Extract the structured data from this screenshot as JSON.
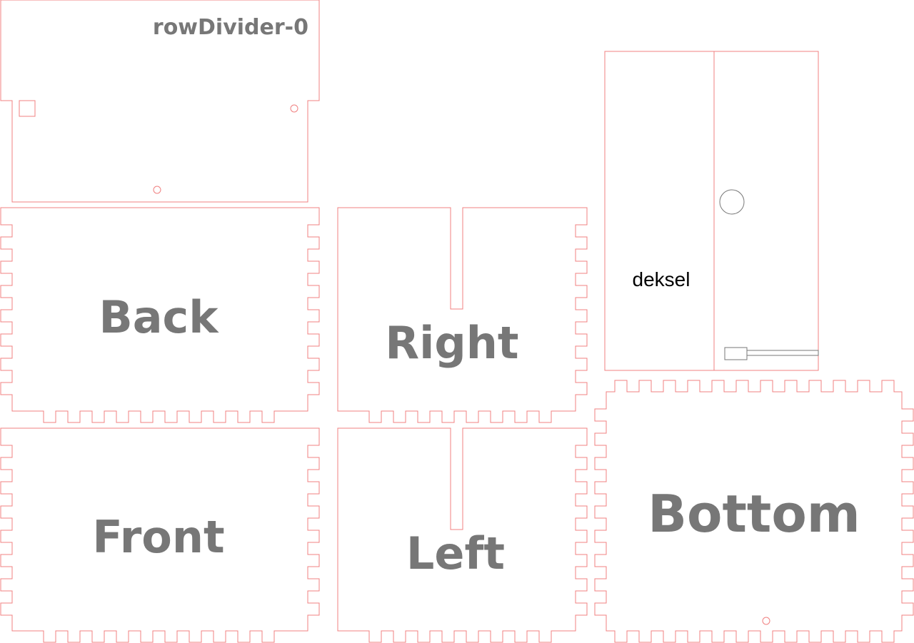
{
  "labels": {
    "row_divider": "rowDivider-0",
    "back": "Back",
    "right": "Right",
    "lid": "deksel",
    "front": "Front",
    "left": "Left",
    "bottom": "Bottom"
  },
  "colors": {
    "cut_line": "#f08080",
    "label_text": "#777777",
    "lid_text": "#000000",
    "engrave_line": "#777777"
  }
}
